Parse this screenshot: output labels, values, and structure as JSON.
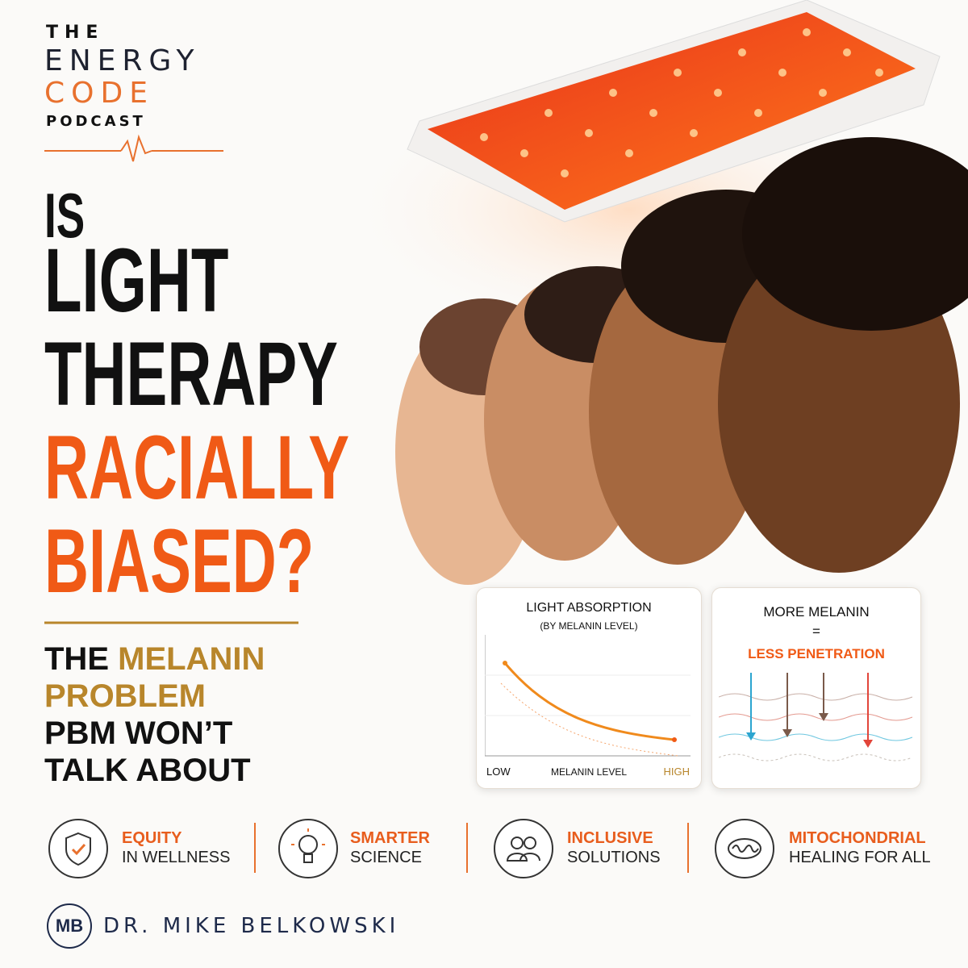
{
  "logo": {
    "line1": "THE",
    "line2": "ENERGY",
    "line3": "CODE",
    "line4": "PODCAST"
  },
  "headline": {
    "lines": [
      "IS",
      "LIGHT",
      "THERAPY",
      "RACIALLY",
      "BIASED?"
    ]
  },
  "subheadline": {
    "line1a": "THE",
    "line1b": "MELANIN",
    "line2": "PROBLEM",
    "line3": "PBM WON’T",
    "line4": "TALK ABOUT"
  },
  "absorption_panel": {
    "title": "LIGHT ABSORPTION",
    "subtitle": "(BY MELANIN LEVEL)",
    "x_low": "LOW",
    "x_label": "MELANIN LEVEL",
    "x_high": "HIGH"
  },
  "melanin_panel": {
    "line1": "MORE MELANIN",
    "line2": "=",
    "line3": "LESS PENETRATION"
  },
  "features": [
    {
      "title": "EQUITY",
      "subtitle": "IN WELLNESS"
    },
    {
      "title": "SMARTER",
      "subtitle": "SCIENCE"
    },
    {
      "title": "INCLUSIVE",
      "subtitle": "SOLUTIONS"
    },
    {
      "title": "MITOCHONDRIAL",
      "subtitle": "HEALING FOR ALL"
    }
  ],
  "footer": {
    "initials": "MB",
    "name": "DR. MIKE BELKOWSKI"
  }
}
